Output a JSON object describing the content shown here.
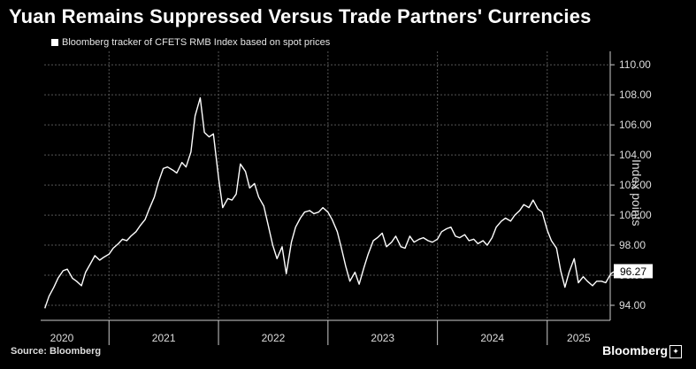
{
  "title": "Yuan Remains Suppressed Versus Trade Partners' Currencies",
  "source": "Source: Bloomberg",
  "brand": "Bloomberg",
  "chart_data": {
    "type": "line",
    "title": "Yuan Remains Suppressed Versus Trade Partners' Currencies",
    "xlabel": "",
    "ylabel": "Index points",
    "ylim": [
      93.0,
      110.6
    ],
    "yticks": [
      "94.00",
      "96.00",
      "98.00",
      "100.00",
      "102.00",
      "104.00",
      "106.00",
      "108.00",
      "110.00"
    ],
    "xticks": [
      "2020",
      "2021",
      "2022",
      "2023",
      "2024",
      "2025"
    ],
    "grid": true,
    "legend_position": "top-left",
    "last_value_label": "96.27",
    "series": [
      {
        "name": "Bloomberg tracker of CFETS RMB Index based on spot prices",
        "color": "#ffffff",
        "x": [
          "2020-06-01",
          "2020-06-15",
          "2020-07-01",
          "2020-07-15",
          "2020-08-01",
          "2020-08-15",
          "2020-09-01",
          "2020-09-15",
          "2020-10-01",
          "2020-10-15",
          "2020-11-01",
          "2020-11-15",
          "2020-12-01",
          "2020-12-15",
          "2021-01-01",
          "2021-01-15",
          "2021-02-01",
          "2021-02-15",
          "2021-03-01",
          "2021-03-15",
          "2021-04-01",
          "2021-04-15",
          "2021-05-01",
          "2021-05-15",
          "2021-06-01",
          "2021-06-15",
          "2021-07-01",
          "2021-07-15",
          "2021-08-01",
          "2021-08-15",
          "2021-09-01",
          "2021-09-15",
          "2021-10-01",
          "2021-10-15",
          "2021-11-01",
          "2021-11-15",
          "2021-12-01",
          "2021-12-15",
          "2022-01-01",
          "2022-01-15",
          "2022-02-01",
          "2022-02-15",
          "2022-03-01",
          "2022-03-15",
          "2022-04-01",
          "2022-04-15",
          "2022-05-01",
          "2022-05-15",
          "2022-06-01",
          "2022-06-15",
          "2022-07-01",
          "2022-07-15",
          "2022-08-01",
          "2022-08-15",
          "2022-09-01",
          "2022-09-15",
          "2022-10-01",
          "2022-10-15",
          "2022-11-01",
          "2022-11-15",
          "2022-12-01",
          "2022-12-15",
          "2023-01-01",
          "2023-01-15",
          "2023-02-01",
          "2023-02-15",
          "2023-03-01",
          "2023-03-15",
          "2023-04-01",
          "2023-04-15",
          "2023-05-01",
          "2023-05-15",
          "2023-06-01",
          "2023-06-15",
          "2023-07-01",
          "2023-07-15",
          "2023-08-01",
          "2023-08-15",
          "2023-09-01",
          "2023-09-15",
          "2023-10-01",
          "2023-10-15",
          "2023-11-01",
          "2023-11-15",
          "2023-12-01",
          "2023-12-15",
          "2024-01-01",
          "2024-01-15",
          "2024-02-01",
          "2024-02-15",
          "2024-03-01",
          "2024-03-15",
          "2024-04-01",
          "2024-04-15",
          "2024-05-01",
          "2024-05-15",
          "2024-06-01",
          "2024-06-15",
          "2024-07-01",
          "2024-07-15",
          "2024-08-01",
          "2024-08-15",
          "2024-09-01",
          "2024-09-15",
          "2024-10-01",
          "2024-10-15",
          "2024-11-01",
          "2024-11-15",
          "2024-12-01",
          "2024-12-15",
          "2025-01-01",
          "2025-01-15",
          "2025-02-01",
          "2025-02-15",
          "2025-03-01",
          "2025-03-15",
          "2025-04-01",
          "2025-04-15",
          "2025-05-01",
          "2025-05-15",
          "2025-06-01",
          "2025-06-15",
          "2025-07-01",
          "2025-07-15",
          "2025-08-01",
          "2025-08-15"
        ],
        "values": [
          93.8,
          94.6,
          95.2,
          95.8,
          96.3,
          96.4,
          95.8,
          95.6,
          95.3,
          96.2,
          96.8,
          97.3,
          97.0,
          97.2,
          97.4,
          97.8,
          98.1,
          98.4,
          98.3,
          98.6,
          98.9,
          99.3,
          99.7,
          100.4,
          101.2,
          102.2,
          103.1,
          103.2,
          103.0,
          102.8,
          103.5,
          103.2,
          104.2,
          106.6,
          107.8,
          105.5,
          105.2,
          105.4,
          102.5,
          100.5,
          101.1,
          101.0,
          101.4,
          103.4,
          102.9,
          101.8,
          102.1,
          101.2,
          100.6,
          99.4,
          98.0,
          97.1,
          97.9,
          96.1,
          98.2,
          99.2,
          99.8,
          100.2,
          100.3,
          100.1,
          100.2,
          100.5,
          100.2,
          99.7,
          98.9,
          97.8,
          96.6,
          95.6,
          96.2,
          95.4,
          96.5,
          97.4,
          98.3,
          98.5,
          98.8,
          97.9,
          98.2,
          98.6,
          97.9,
          97.8,
          98.6,
          98.2,
          98.4,
          98.5,
          98.3,
          98.2,
          98.4,
          98.9,
          99.1,
          99.2,
          98.6,
          98.5,
          98.7,
          98.3,
          98.4,
          98.1,
          98.3,
          98.0,
          98.5,
          99.2,
          99.6,
          99.8,
          99.6,
          100.0,
          100.3,
          100.7,
          100.5,
          101.0,
          100.4,
          100.2,
          99.0,
          98.3,
          97.8,
          96.3,
          95.2,
          96.2,
          97.1,
          95.5,
          95.9,
          95.6,
          95.3,
          95.6,
          95.6,
          95.5,
          96.1,
          96.27
        ]
      }
    ]
  }
}
